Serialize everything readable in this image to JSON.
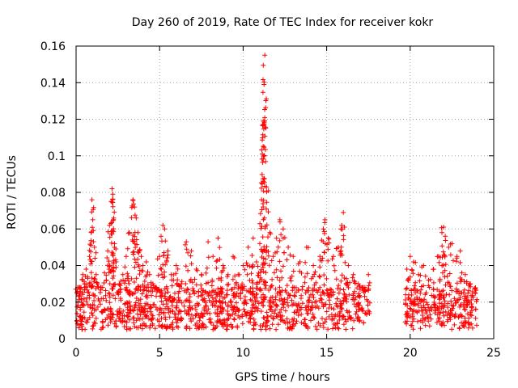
{
  "chart_data": {
    "type": "scatter",
    "title": "Day 260 of 2019, Rate Of TEC Index for receiver kokr",
    "xlabel": "GPS time / hours",
    "ylabel": "ROTI / TECUs",
    "xlim": [
      0,
      25
    ],
    "ylim": [
      0,
      0.16
    ],
    "xticks": [
      0,
      5,
      10,
      15,
      20,
      25
    ],
    "xtick_labels": [
      "0",
      "5",
      "10",
      "15",
      "20",
      "25"
    ],
    "yticks": [
      0,
      0.02,
      0.04,
      0.06,
      0.08,
      0.1,
      0.12,
      0.14,
      0.16
    ],
    "ytick_labels": [
      "0",
      "0.02",
      "0.04",
      "0.06",
      "0.08",
      "0.1",
      "0.12",
      "0.14",
      "0.16"
    ],
    "grid": true,
    "marker": "+",
    "color": "#ff0000",
    "data_gap": [
      17.6,
      19.7
    ],
    "series": [
      {
        "name": "ROTI",
        "x": [
          0.05,
          0.1,
          0.2,
          0.3,
          0.4,
          0.5,
          0.6,
          0.7,
          0.8,
          0.9,
          0.95,
          1.0,
          1.1,
          1.2,
          1.3,
          1.5,
          1.7,
          1.9,
          2.0,
          2.1,
          2.15,
          2.2,
          2.25,
          2.3,
          2.4,
          2.6,
          2.8,
          3.0,
          3.2,
          3.4,
          3.5,
          3.6,
          3.7,
          3.8,
          3.9,
          4.0,
          4.2,
          4.4,
          4.6,
          4.8,
          5.0,
          5.2,
          5.3,
          5.5,
          5.7,
          6.0,
          6.3,
          6.6,
          6.9,
          7.2,
          7.5,
          7.9,
          8.2,
          8.5,
          8.8,
          9.1,
          9.4,
          9.7,
          10.0,
          10.3,
          10.6,
          10.8,
          11.0,
          11.1,
          11.15,
          11.2,
          11.25,
          11.3,
          11.4,
          11.6,
          11.8,
          12.0,
          12.2,
          12.4,
          12.7,
          13.0,
          13.4,
          13.8,
          14.2,
          14.6,
          14.8,
          14.9,
          15.1,
          15.4,
          15.7,
          15.9,
          16.0,
          16.3,
          16.6,
          16.9,
          17.2,
          17.5,
          19.8,
          20.0,
          20.2,
          20.5,
          20.8,
          21.1,
          21.4,
          21.7,
          21.9,
          22.0,
          22.1,
          22.3,
          22.5,
          22.8,
          23.0,
          23.3,
          23.6,
          23.9
        ],
        "y": [
          0.025,
          0.02,
          0.028,
          0.022,
          0.035,
          0.03,
          0.038,
          0.033,
          0.045,
          0.058,
          0.076,
          0.065,
          0.05,
          0.035,
          0.03,
          0.028,
          0.036,
          0.048,
          0.062,
          0.075,
          0.082,
          0.079,
          0.066,
          0.052,
          0.042,
          0.03,
          0.035,
          0.045,
          0.058,
          0.076,
          0.072,
          0.066,
          0.058,
          0.048,
          0.045,
          0.04,
          0.042,
          0.035,
          0.03,
          0.028,
          0.045,
          0.062,
          0.06,
          0.048,
          0.035,
          0.04,
          0.03,
          0.053,
          0.048,
          0.038,
          0.035,
          0.053,
          0.045,
          0.055,
          0.04,
          0.035,
          0.045,
          0.035,
          0.04,
          0.05,
          0.055,
          0.042,
          0.052,
          0.076,
          0.101,
          0.119,
          0.139,
          0.155,
          0.083,
          0.058,
          0.045,
          0.055,
          0.065,
          0.06,
          0.05,
          0.045,
          0.042,
          0.05,
          0.04,
          0.045,
          0.06,
          0.065,
          0.055,
          0.045,
          0.05,
          0.062,
          0.069,
          0.04,
          0.035,
          0.03,
          0.028,
          0.035,
          0.038,
          0.045,
          0.042,
          0.035,
          0.04,
          0.032,
          0.038,
          0.045,
          0.058,
          0.061,
          0.056,
          0.05,
          0.052,
          0.045,
          0.048,
          0.035,
          0.03,
          0.025
        ],
        "baseline_band": [
          0.005,
          0.028
        ]
      }
    ]
  }
}
